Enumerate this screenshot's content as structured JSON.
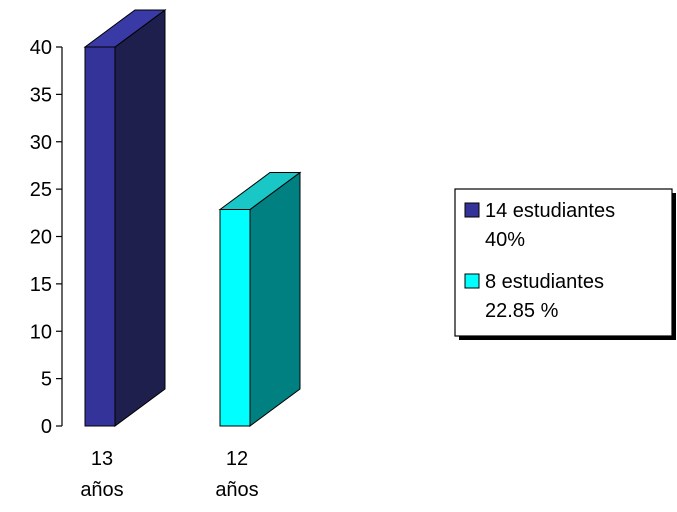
{
  "chart_data": {
    "type": "bar",
    "title": "",
    "xlabel": "",
    "ylabel": "",
    "ylim": [
      0,
      40
    ],
    "yticks": [
      0,
      5,
      10,
      15,
      20,
      25,
      30,
      35,
      40
    ],
    "categories": [
      [
        "13",
        "años"
      ],
      [
        "12",
        "años"
      ]
    ],
    "values": [
      40,
      22.85
    ],
    "legend": {
      "position": "right",
      "entries": [
        {
          "lines": [
            "14 estudiantes",
            "40%"
          ]
        },
        {
          "lines": [
            "8 estudiantes",
            "22.85 %"
          ]
        }
      ]
    },
    "colors": [
      {
        "front": "#333399",
        "side": "#1f1f4e",
        "top": "#3a3aa6"
      },
      {
        "front": "#00ffff",
        "side": "#008080",
        "top": "#19c7c7"
      }
    ],
    "grid": false
  }
}
